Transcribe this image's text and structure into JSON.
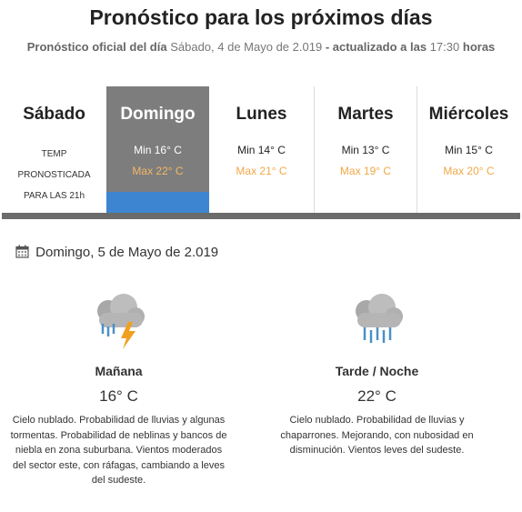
{
  "title": "Pronóstico para los próximos días",
  "subtitle": {
    "label": "Pronóstico oficial del día",
    "date": "Sábado, 4 de Mayo de 2.019",
    "updated_label": "- actualizado a las",
    "time": "17:30",
    "hours_label": "horas"
  },
  "days": [
    {
      "name": "Sábado",
      "labels": [
        "TEMP",
        "PRONOSTICADA",
        "PARA LAS 21h"
      ]
    },
    {
      "name": "Domingo",
      "min": "Min 16° C",
      "max": "Max 22° C",
      "selected": true
    },
    {
      "name": "Lunes",
      "min": "Min 14° C",
      "max": "Max 21° C"
    },
    {
      "name": "Martes",
      "min": "Min 13° C",
      "max": "Max 19° C"
    },
    {
      "name": "Miércoles",
      "min": "Min 15° C",
      "max": "Max 20° C"
    }
  ],
  "detail": {
    "date": "Domingo, 5 de Mayo de 2.019",
    "morning": {
      "name": "Mañana",
      "temp": "16° C",
      "icon": "storm-rain-cloud-icon",
      "desc": "Cielo nublado. Probabilidad de lluvias y algunas tormentas. Probabilidad de neblinas y bancos de niebla en zona suburbana. Vientos moderados del sector este, con ráfagas, cambiando a leves del sudeste."
    },
    "evening": {
      "name": "Tarde / Noche",
      "temp": "22° C",
      "icon": "rain-cloud-icon",
      "desc": "Cielo nublado. Probabilidad de lluvias y chaparrones. Mejorando, con nubosidad en disminución. Vientos leves del sudeste."
    }
  },
  "colors": {
    "accent": "#3e85d1",
    "max_temp": "#f0a848",
    "selected_bg": "#7d7d7d"
  }
}
